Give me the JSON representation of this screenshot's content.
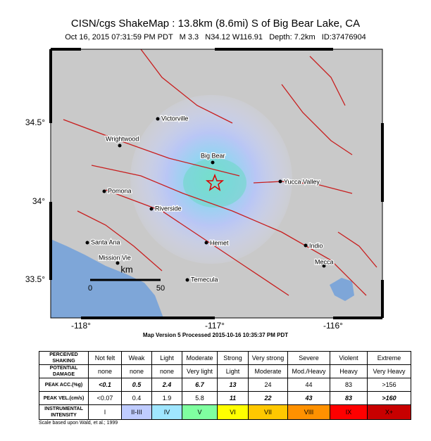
{
  "header": {
    "title": "CISN/cgs ShakeMap : 13.8km (8.6mi) S of Big Bear Lake, CA",
    "subtitle": "Oct 16, 2015 07:31:59 PM PDT   M 3.3   N34.12 W116.91   Depth: 7.2km   ID:37476904"
  },
  "map": {
    "lat_labels": [
      "34.5°",
      "34°",
      "33.5°"
    ],
    "lon_labels": [
      "-118°",
      "-117°",
      "-116°"
    ],
    "cities": [
      "Victorville",
      "Wrightwood",
      "Big Bear",
      "Yucca Valley",
      "Pomona",
      "Riverside",
      "Santa Ana",
      "Hemet",
      "Indio",
      "Mission Vie",
      "Temecula",
      "Mecca"
    ],
    "scale": {
      "unit": "km",
      "start": "0",
      "end": "50"
    }
  },
  "map_version": "Map Version 5 Processed 2015-10-16 10:35:37 PM PDT",
  "table": {
    "rows": [
      [
        "PERCEIVED SHAKING",
        "Not felt",
        "Weak",
        "Light",
        "Moderate",
        "Strong",
        "Very strong",
        "Severe",
        "Violent",
        "Extreme"
      ],
      [
        "POTENTIAL DAMAGE",
        "none",
        "none",
        "none",
        "Very light",
        "Light",
        "Moderate",
        "Mod./Heavy",
        "Heavy",
        "Very Heavy"
      ],
      [
        "PEAK ACC.(%g)",
        "<0.1",
        "0.5",
        "2.4",
        "6.7",
        "13",
        "24",
        "44",
        "83",
        ">156"
      ],
      [
        "PEAK VEL.(cm/s)",
        "<0.07",
        "0.4",
        "1.9",
        "5.8",
        "11",
        "22",
        "43",
        "83",
        ">160"
      ],
      [
        "INSTRUMENTAL INTENSITY",
        "I",
        "II-III",
        "IV",
        "V",
        "VI",
        "VII",
        "VIII",
        "IX",
        "X+"
      ]
    ]
  },
  "footnote": "Scale based upon Wald, et al.; 1999"
}
